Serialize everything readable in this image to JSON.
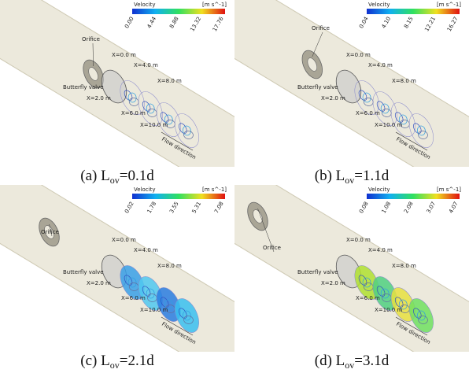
{
  "panels": [
    {
      "caption": {
        "label": "(a)",
        "symbol": "L",
        "subscript": "ov",
        "value": "=0.1d"
      },
      "colorbar": {
        "title": "Velocity",
        "unit": "[m s^-1]",
        "ticks": [
          "0.00",
          "4.44",
          "8.88",
          "13.32",
          "17.76"
        ]
      },
      "labels": [
        "Orifice",
        "X=0.0 m",
        "X=4.0 m",
        "X=8.0 m",
        "Butterfly valve",
        "X=2.0 m",
        "X=6.0 m",
        "X=10.0 m",
        "Flow direction"
      ]
    },
    {
      "caption": {
        "label": "(b)",
        "symbol": "L",
        "subscript": "ov",
        "value": "=1.1d"
      },
      "colorbar": {
        "title": "Velocity",
        "unit": "[m s^-1]",
        "ticks": [
          "0.04",
          "4.10",
          "8.15",
          "12.21",
          "16.27"
        ]
      },
      "labels": [
        "Orifice",
        "X=0.0 m",
        "X=4.0 m",
        "X=8.0 m",
        "Butterfly valve",
        "X=2.0 m",
        "X=6.0 m",
        "X=10.0 m",
        "Flow direction"
      ]
    },
    {
      "caption": {
        "label": "(c)",
        "symbol": "L",
        "subscript": "ov",
        "value": "=2.1d"
      },
      "colorbar": {
        "title": "Velocity",
        "unit": "[m s^-1]",
        "ticks": [
          "0.02",
          "1.78",
          "3.55",
          "5.31",
          "7.08"
        ]
      },
      "labels": [
        "Orifice",
        "X=0.0 m",
        "X=4.0 m",
        "X=8.0 m",
        "Butterfly valve",
        "X=2.0 m",
        "X=6.0 m",
        "X=10.0 m",
        "Flow direction"
      ]
    },
    {
      "caption": {
        "label": "(d)",
        "symbol": "L",
        "subscript": "ov",
        "value": "=3.1d"
      },
      "colorbar": {
        "title": "Velocity",
        "unit": "[m s^-1]",
        "ticks": [
          "0.08",
          "1.08",
          "2.08",
          "3.07",
          "4.07"
        ]
      },
      "labels": [
        "Orifice",
        "X=0.0 m",
        "X=4.0 m",
        "X=8.0 m",
        "Butterfly valve",
        "X=2.0 m",
        "X=6.0 m",
        "X=10.0 m",
        "Flow direction"
      ]
    }
  ]
}
